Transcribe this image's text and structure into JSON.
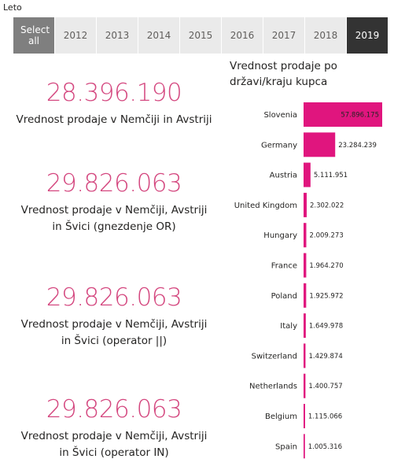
{
  "slicer": {
    "title": "Leto",
    "select_all": "Select all",
    "years": [
      "2012",
      "2013",
      "2014",
      "2015",
      "2016",
      "2017",
      "2018",
      "2019"
    ],
    "selected": "2019"
  },
  "kpis": [
    {
      "value": "28.396.190",
      "label": "Vrednost prodaje v Nemčiji in Avstriji"
    },
    {
      "value": "29.826.063",
      "label": "Vrednost prodaje v Nemčiji, Avstriji in Švici (gnezdenje OR)"
    },
    {
      "value": "29.826.063",
      "label": "Vrednost prodaje v Nemčiji, Avstriji in Švici (operator ||)"
    },
    {
      "value": "29.826.063",
      "label": "Vrednost prodaje v Nemčiji, Avstriji in Švici (operator IN)"
    }
  ],
  "colors": {
    "accent": "#d4477f",
    "bar": "#e0157e",
    "selected_tile": "#333333",
    "select_all_tile": "#7f7f7f",
    "tile": "#eaeaea"
  },
  "chart_data": {
    "type": "bar",
    "orientation": "horizontal",
    "title": "Vrednost prodaje po državi/kraju kupca",
    "categories": [
      "Slovenia",
      "Germany",
      "Austria",
      "United Kingdom",
      "Hungary",
      "France",
      "Poland",
      "Italy",
      "Switzerland",
      "Netherlands",
      "Belgium",
      "Spain"
    ],
    "values": [
      57896175,
      23284239,
      5111951,
      2302022,
      2009273,
      1964270,
      1925972,
      1649978,
      1429874,
      1400757,
      1115066,
      1005316
    ],
    "data_labels": [
      "57.896.175",
      "23.284.239",
      "5.111.951",
      "2.302.022",
      "2.009.273",
      "1.964.270",
      "1.925.972",
      "1.649.978",
      "1.429.874",
      "1.400.757",
      "1.115.066",
      "1.005.316"
    ],
    "xlim": [
      0,
      57896175
    ],
    "legend": "none",
    "grid": false
  }
}
